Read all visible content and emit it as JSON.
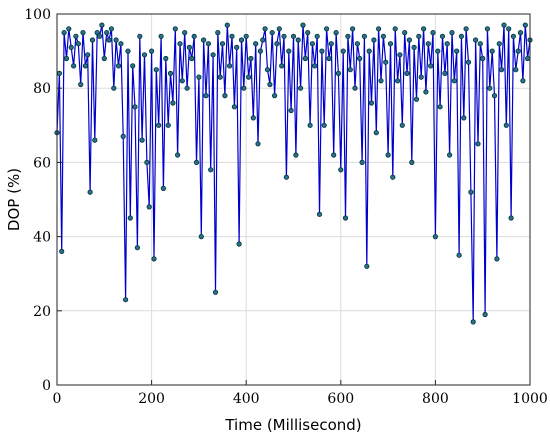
{
  "chart_data": {
    "type": "line",
    "title": "",
    "xlabel": "Time (Millisecond)",
    "ylabel": "DOP (%)",
    "xlim": [
      0,
      1000
    ],
    "ylim": [
      0,
      100
    ],
    "x_ticks": [
      "0",
      "200",
      "400",
      "600",
      "800",
      "1000"
    ],
    "y_ticks": [
      "0",
      "20",
      "40",
      "60",
      "80",
      "100"
    ],
    "grid": true,
    "legend": "none",
    "line_color": "#0000cc",
    "marker_edge_color": "#003333",
    "marker_face_color": "#2a6f8f",
    "series": [
      {
        "x": [
          0,
          5,
          10,
          15,
          20,
          25,
          30,
          35,
          40,
          45,
          50,
          55,
          60,
          65,
          70,
          75,
          80,
          85,
          90,
          95,
          100,
          105,
          110,
          115,
          120,
          125,
          130,
          135,
          140,
          145,
          150,
          155,
          160,
          165,
          170,
          175,
          180,
          185,
          190,
          195,
          200,
          205,
          210,
          215,
          220,
          225,
          230,
          235,
          240,
          245,
          250,
          255,
          260,
          265,
          270,
          275,
          280,
          285,
          290,
          295,
          300,
          305,
          310,
          315,
          320,
          325,
          330,
          335,
          340,
          345,
          350,
          355,
          360,
          365,
          370,
          375,
          380,
          385,
          390,
          395,
          400,
          405,
          410,
          415,
          420,
          425,
          430,
          435,
          440,
          445,
          450,
          455,
          460,
          465,
          470,
          475,
          480,
          485,
          490,
          495,
          500,
          505,
          510,
          515,
          520,
          525,
          530,
          535,
          540,
          545,
          550,
          555,
          560,
          565,
          570,
          575,
          580,
          585,
          590,
          595,
          600,
          605,
          610,
          615,
          620,
          625,
          630,
          635,
          640,
          645,
          650,
          655,
          660,
          665,
          670,
          675,
          680,
          685,
          690,
          695,
          700,
          705,
          710,
          715,
          720,
          725,
          730,
          735,
          740,
          745,
          750,
          755,
          760,
          765,
          770,
          775,
          780,
          785,
          790,
          795,
          800,
          805,
          810,
          815,
          820,
          825,
          830,
          835,
          840,
          845,
          850,
          855,
          860,
          865,
          870,
          875,
          880,
          885,
          890,
          895,
          900,
          905,
          910,
          915,
          920,
          925,
          930,
          935,
          940,
          945,
          950,
          955,
          960,
          965,
          970,
          975,
          980,
          985,
          990,
          995,
          1000
        ],
        "y": [
          68,
          84,
          36,
          95,
          88,
          96,
          91,
          86,
          94,
          92,
          81,
          95,
          86,
          89,
          52,
          93,
          66,
          95,
          94,
          97,
          88,
          95,
          93,
          96,
          80,
          93,
          86,
          92,
          67,
          23,
          90,
          45,
          86,
          75,
          37,
          94,
          66,
          89,
          60,
          48,
          90,
          34,
          85,
          70,
          94,
          53,
          88,
          70,
          84,
          76,
          96,
          62,
          92,
          82,
          95,
          80,
          91,
          88,
          94,
          60,
          83,
          40,
          93,
          78,
          92,
          58,
          89,
          25,
          95,
          83,
          92,
          78,
          97,
          86,
          94,
          75,
          91,
          38,
          93,
          80,
          94,
          83,
          88,
          72,
          92,
          65,
          90,
          93,
          96,
          85,
          81,
          95,
          78,
          92,
          96,
          86,
          94,
          56,
          90,
          74,
          94,
          62,
          93,
          80,
          97,
          88,
          95,
          70,
          92,
          86,
          94,
          46,
          90,
          70,
          96,
          88,
          92,
          62,
          95,
          84,
          58,
          90,
          45,
          94,
          85,
          96,
          80,
          92,
          88,
          60,
          94,
          32,
          90,
          76,
          93,
          68,
          96,
          82,
          94,
          87,
          62,
          92,
          56,
          96,
          82,
          89,
          70,
          95,
          84,
          93,
          60,
          91,
          77,
          94,
          83,
          96,
          79,
          92,
          86,
          95,
          40,
          90,
          75,
          94,
          84,
          92,
          62,
          95,
          82,
          90,
          35,
          94,
          72,
          96,
          87,
          52,
          17,
          93,
          65,
          92,
          88,
          19,
          96,
          80,
          90,
          78,
          34,
          92,
          85,
          97,
          70,
          96,
          45,
          94,
          85,
          90,
          95,
          82,
          97,
          88,
          93
        ]
      }
    ]
  }
}
